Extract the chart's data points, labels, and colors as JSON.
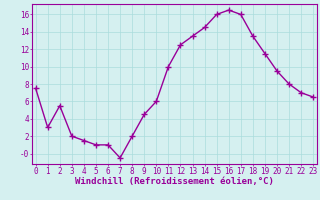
{
  "x": [
    0,
    1,
    2,
    3,
    4,
    5,
    6,
    7,
    8,
    9,
    10,
    11,
    12,
    13,
    14,
    15,
    16,
    17,
    18,
    19,
    20,
    21,
    22,
    23
  ],
  "y": [
    7.5,
    3.0,
    5.5,
    2.0,
    1.5,
    1.0,
    1.0,
    -0.5,
    2.0,
    4.5,
    6.0,
    10.0,
    12.5,
    13.5,
    14.5,
    16.0,
    16.5,
    16.0,
    13.5,
    11.5,
    9.5,
    8.0,
    7.0,
    6.5
  ],
  "xlim": [
    -0.3,
    23.3
  ],
  "ylim": [
    -1.2,
    17.2
  ],
  "yticks": [
    0,
    2,
    4,
    6,
    8,
    10,
    12,
    14,
    16
  ],
  "ytick_labels": [
    "-0",
    "2",
    "4",
    "6",
    "8",
    "10",
    "12",
    "14",
    "16"
  ],
  "xticks": [
    0,
    1,
    2,
    3,
    4,
    5,
    6,
    7,
    8,
    9,
    10,
    11,
    12,
    13,
    14,
    15,
    16,
    17,
    18,
    19,
    20,
    21,
    22,
    23
  ],
  "xlabel": "Windchill (Refroidissement éolien,°C)",
  "line_color": "#990099",
  "marker": "+",
  "bg_color": "#d5f0f0",
  "grid_color": "#aadddd",
  "spine_color": "#990099",
  "tick_color": "#990099",
  "label_color": "#990099",
  "font_size_xlabel": 6.5,
  "font_size_tick": 5.5,
  "linewidth": 1.0,
  "markersize": 4,
  "marker_linewidth": 1.0
}
